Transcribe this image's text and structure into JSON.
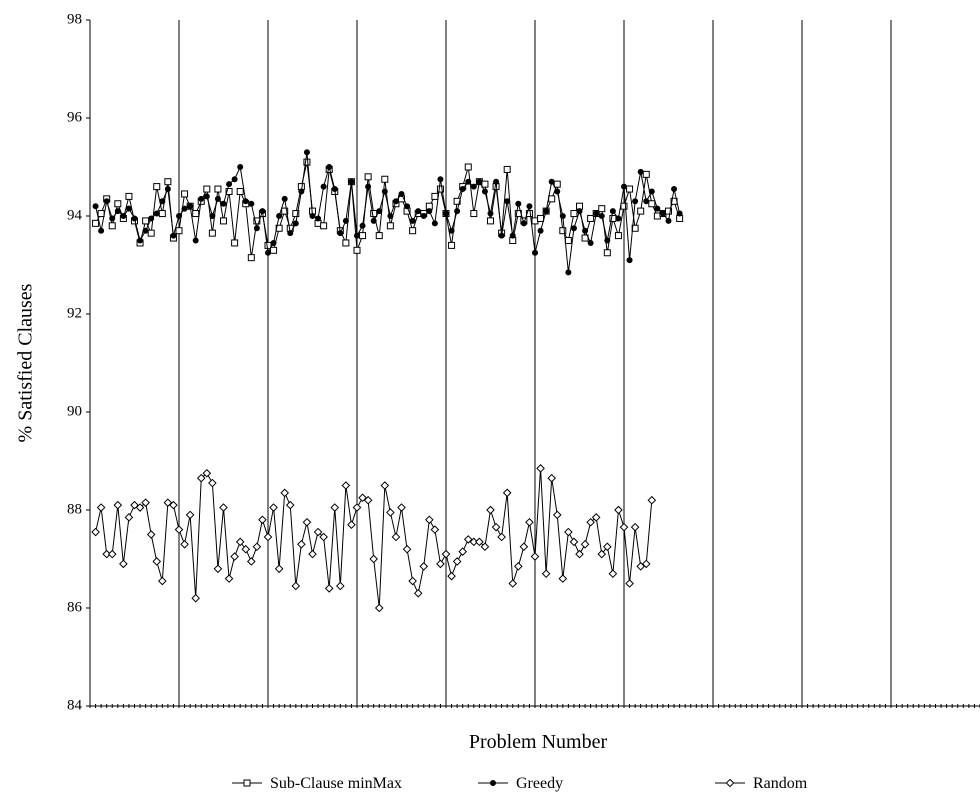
{
  "chart_data": {
    "type": "line",
    "title": "",
    "xlabel": "Problem Number",
    "ylabel": "% Satisfied Clauses",
    "ylim": [
      84,
      98
    ],
    "yticks": [
      84,
      86,
      88,
      90,
      92,
      94,
      96,
      98
    ],
    "xlim": [
      0,
      160
    ],
    "grid": "vertical lines every 16 problems",
    "vlines": [
      16,
      32,
      48,
      64,
      80,
      96,
      112,
      128,
      144
    ],
    "legend_position": "bottom",
    "series": [
      {
        "name": "Sub-Clause minMax",
        "marker": "square",
        "values": [
          93.85,
          94.05,
          94.35,
          93.8,
          94.25,
          93.95,
          94.4,
          93.9,
          93.45,
          93.9,
          93.65,
          94.6,
          94.05,
          94.7,
          93.55,
          93.7,
          94.45,
          94.2,
          94.05,
          94.3,
          94.55,
          93.65,
          94.55,
          93.9,
          94.5,
          93.45,
          94.5,
          94.25,
          93.15,
          93.9,
          94.05,
          93.4,
          93.3,
          93.75,
          94.1,
          93.75,
          94.05,
          94.6,
          95.1,
          94.1,
          93.85,
          93.8,
          94.95,
          94.5,
          93.7,
          93.45,
          94.7,
          93.3,
          93.6,
          94.8,
          94.05,
          93.6,
          94.75,
          93.8,
          94.25,
          94.35,
          94.1,
          93.7,
          94.05,
          94.05,
          94.2,
          94.4,
          94.55,
          94.05,
          93.4,
          94.3,
          94.6,
          95.0,
          94.05,
          94.7,
          94.65,
          93.9,
          94.6,
          93.65,
          94.95,
          93.5,
          94.05,
          93.9,
          94.05,
          93.9,
          93.95,
          94.1,
          94.35,
          94.65,
          93.7,
          93.5,
          94.05,
          94.2,
          93.55,
          93.95,
          94.05,
          94.15,
          93.25,
          93.95,
          93.6,
          94.2,
          94.55,
          93.75,
          94.1,
          94.85,
          94.25,
          94.0,
          94.05,
          94.1,
          94.3,
          93.95
        ],
        "color": "#000000"
      },
      {
        "name": "Greedy",
        "marker": "dot",
        "values": [
          94.2,
          93.7,
          94.3,
          93.95,
          94.1,
          94.0,
          94.15,
          93.95,
          93.5,
          93.7,
          93.95,
          94.05,
          94.3,
          94.55,
          93.6,
          94.0,
          94.15,
          94.2,
          93.5,
          94.35,
          94.4,
          94.0,
          94.35,
          94.25,
          94.65,
          94.75,
          95.0,
          94.3,
          94.25,
          93.75,
          94.1,
          93.25,
          93.45,
          94.0,
          94.35,
          93.65,
          93.85,
          94.5,
          95.3,
          94.0,
          93.95,
          94.6,
          95.0,
          94.55,
          93.65,
          93.9,
          94.7,
          93.6,
          93.8,
          94.6,
          93.9,
          94.1,
          94.5,
          94.0,
          94.3,
          94.45,
          94.2,
          93.9,
          94.1,
          94.0,
          94.1,
          93.85,
          94.75,
          94.05,
          93.7,
          94.1,
          94.55,
          94.7,
          94.6,
          94.7,
          94.5,
          94.05,
          94.7,
          93.6,
          94.3,
          93.6,
          94.25,
          93.85,
          94.2,
          93.25,
          93.7,
          94.1,
          94.7,
          94.5,
          94.0,
          92.85,
          93.75,
          94.1,
          93.7,
          93.45,
          94.05,
          94.0,
          93.5,
          94.1,
          93.95,
          94.6,
          93.1,
          94.3,
          94.9,
          94.3,
          94.5,
          94.15,
          94.05,
          93.9,
          94.55,
          94.05
        ],
        "color": "#000000"
      },
      {
        "name": "Random",
        "marker": "diamond",
        "values": [
          87.55,
          88.05,
          87.1,
          87.1,
          88.1,
          86.9,
          87.85,
          88.1,
          88.05,
          88.15,
          87.5,
          86.95,
          86.55,
          88.15,
          88.1,
          87.6,
          87.3,
          87.9,
          86.2,
          88.65,
          88.75,
          88.55,
          86.8,
          88.05,
          86.6,
          87.05,
          87.35,
          87.2,
          86.95,
          87.25,
          87.8,
          87.45,
          88.05,
          86.8,
          88.35,
          88.1,
          86.45,
          87.3,
          87.75,
          87.1,
          87.55,
          87.45,
          86.4,
          88.05,
          86.45,
          88.5,
          87.7,
          88.05,
          88.25,
          88.2,
          87.0,
          86.0,
          88.5,
          87.95,
          87.45,
          88.05,
          87.2,
          86.55,
          86.3,
          86.85,
          87.8,
          87.6,
          86.9,
          87.1,
          86.65,
          86.95,
          87.15,
          87.4,
          87.35,
          87.35,
          87.25,
          88.0,
          87.65,
          87.45,
          88.35,
          86.5,
          86.85,
          87.25,
          87.75,
          87.05,
          88.85,
          86.7,
          88.65,
          87.9,
          86.6,
          87.55,
          87.35,
          87.1,
          87.3,
          87.75,
          87.85,
          87.1,
          87.25,
          86.7,
          88.0,
          87.65,
          86.5,
          87.65,
          86.85,
          86.9,
          88.2
        ],
        "color": "#000000"
      }
    ]
  }
}
